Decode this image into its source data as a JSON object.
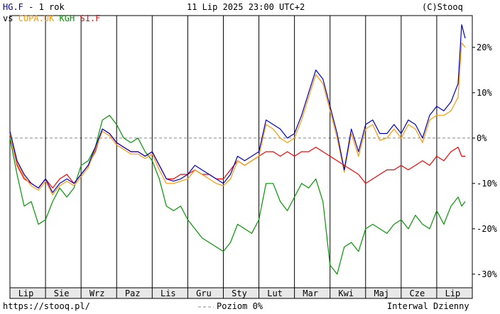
{
  "header": {
    "symbol": "HG.F",
    "range_text": " - 1 rok",
    "date": "11 Lip 2025 23:00 UTC+2",
    "copyright": "(C)Stooq",
    "vs_label": "vs",
    "compare": [
      {
        "label": "COPA.UK",
        "color": "#ff9900"
      },
      {
        "label": "KGH",
        "color": "#009900"
      },
      {
        "label": "S1.F",
        "color": "#ff0000"
      }
    ]
  },
  "footer": {
    "url": "https://stooq.pl/",
    "legend": "Poziom 0%",
    "interval": "Interwal Dzienny"
  },
  "chart_data": {
    "type": "line",
    "ylim": [
      -33,
      27
    ],
    "yticks": [
      -30,
      -20,
      -10,
      0,
      10,
      20
    ],
    "ytick_labels": [
      "-30%",
      "-20%",
      "-10%",
      "0%",
      "10%",
      "20%"
    ],
    "xlim": [
      0,
      13
    ],
    "xticks": [
      {
        "pos": 0.6,
        "label": "Lip"
      },
      {
        "pos": 1.6,
        "label": "Sie"
      },
      {
        "pos": 2.6,
        "label": "Wrz"
      },
      {
        "pos": 3.6,
        "label": "Paz"
      },
      {
        "pos": 4.6,
        "label": "Lis"
      },
      {
        "pos": 5.6,
        "label": "Gru"
      },
      {
        "pos": 6.6,
        "label": "Sty"
      },
      {
        "pos": 7.6,
        "label": "Lut"
      },
      {
        "pos": 8.6,
        "label": "Mar"
      },
      {
        "pos": 9.6,
        "label": "Kwi"
      },
      {
        "pos": 10.6,
        "label": "Maj"
      },
      {
        "pos": 11.6,
        "label": "Cze"
      },
      {
        "pos": 12.6,
        "label": "Lip"
      }
    ],
    "series": [
      {
        "name": "HG.F",
        "color": "#0000cc",
        "x": [
          0,
          0.2,
          0.4,
          0.6,
          0.8,
          1.0,
          1.2,
          1.4,
          1.6,
          1.8,
          2.0,
          2.2,
          2.4,
          2.6,
          2.8,
          3.0,
          3.2,
          3.4,
          3.6,
          3.8,
          4.0,
          4.2,
          4.4,
          4.6,
          4.8,
          5.0,
          5.2,
          5.4,
          5.6,
          5.8,
          6.0,
          6.2,
          6.4,
          6.6,
          6.8,
          7.0,
          7.2,
          7.4,
          7.6,
          7.8,
          8.0,
          8.2,
          8.4,
          8.6,
          8.8,
          9.0,
          9.2,
          9.4,
          9.6,
          9.8,
          10.0,
          10.2,
          10.4,
          10.6,
          10.8,
          11.0,
          11.2,
          11.4,
          11.6,
          11.8,
          12.0,
          12.2,
          12.4,
          12.6,
          12.7,
          12.8
        ],
        "y": [
          1.5,
          -5,
          -8,
          -10,
          -11,
          -9,
          -12,
          -10,
          -9,
          -10,
          -8,
          -6,
          -2,
          2,
          1,
          -1,
          -2,
          -3,
          -3,
          -4,
          -3,
          -6,
          -9,
          -9.5,
          -9,
          -8,
          -6,
          -7,
          -8,
          -9,
          -10,
          -8,
          -4,
          -5,
          -4,
          -3,
          4,
          3,
          2,
          0,
          1,
          5,
          10,
          15,
          13,
          7,
          1,
          -7,
          2,
          -3,
          3,
          4,
          1,
          1,
          3,
          1,
          4,
          3,
          0,
          5,
          7,
          6,
          8,
          12,
          25,
          22
        ]
      },
      {
        "name": "COPA.UK",
        "color": "#ff9900",
        "x": [
          0,
          0.2,
          0.4,
          0.6,
          0.8,
          1.0,
          1.2,
          1.4,
          1.6,
          1.8,
          2.0,
          2.2,
          2.4,
          2.6,
          2.8,
          3.0,
          3.2,
          3.4,
          3.6,
          3.8,
          4.0,
          4.2,
          4.4,
          4.6,
          4.8,
          5.0,
          5.2,
          5.4,
          5.6,
          5.8,
          6.0,
          6.2,
          6.4,
          6.6,
          6.8,
          7.0,
          7.2,
          7.4,
          7.6,
          7.8,
          8.0,
          8.2,
          8.4,
          8.6,
          8.8,
          9.0,
          9.2,
          9.4,
          9.6,
          9.8,
          10.0,
          10.2,
          10.4,
          10.6,
          10.8,
          11.0,
          11.2,
          11.4,
          11.6,
          11.8,
          12.0,
          12.2,
          12.4,
          12.6,
          12.7,
          12.8
        ],
        "y": [
          1,
          -5.5,
          -8.5,
          -10.5,
          -11.5,
          -9.5,
          -12.5,
          -10.5,
          -9.5,
          -10.5,
          -8.5,
          -6.5,
          -2.5,
          1.5,
          0.5,
          -1.5,
          -2.5,
          -3.5,
          -3.5,
          -4.5,
          -3.5,
          -7,
          -10,
          -10,
          -9.5,
          -9,
          -7,
          -8,
          -9,
          -10,
          -10.5,
          -9,
          -5,
          -6,
          -5,
          -4,
          3,
          2,
          0,
          -1,
          0,
          4,
          9,
          14,
          12,
          6,
          0,
          -7.5,
          1,
          -4,
          2,
          3,
          -0.5,
          0,
          2,
          0,
          3,
          2,
          -1,
          4,
          5,
          5,
          6,
          9,
          21,
          20
        ]
      },
      {
        "name": "KGH",
        "color": "#009900",
        "x": [
          0,
          0.2,
          0.4,
          0.6,
          0.8,
          1.0,
          1.2,
          1.4,
          1.6,
          1.8,
          2.0,
          2.2,
          2.4,
          2.6,
          2.8,
          3.0,
          3.2,
          3.4,
          3.6,
          3.8,
          4.0,
          4.2,
          4.4,
          4.6,
          4.8,
          5.0,
          5.2,
          5.4,
          5.6,
          5.8,
          6.0,
          6.2,
          6.4,
          6.6,
          6.8,
          7.0,
          7.2,
          7.4,
          7.6,
          7.8,
          8.0,
          8.2,
          8.4,
          8.6,
          8.8,
          9.0,
          9.2,
          9.4,
          9.6,
          9.8,
          10.0,
          10.2,
          10.4,
          10.6,
          10.8,
          11.0,
          11.2,
          11.4,
          11.6,
          11.8,
          12.0,
          12.2,
          12.4,
          12.6,
          12.7,
          12.8
        ],
        "y": [
          0,
          -8,
          -15,
          -14,
          -19,
          -18,
          -14,
          -11,
          -13,
          -11,
          -6,
          -5,
          -2,
          4,
          5,
          3,
          0,
          -1,
          0,
          -3,
          -5,
          -9,
          -15,
          -16,
          -15,
          -18,
          -20,
          -22,
          -23,
          -24,
          -25,
          -23,
          -19,
          -20,
          -21,
          -18,
          -10,
          -10,
          -14,
          -16,
          -13,
          -10,
          -11,
          -9,
          -14,
          -28,
          -30,
          -24,
          -23,
          -25,
          -20,
          -19,
          -20,
          -21,
          -19,
          -18,
          -20,
          -17,
          -19,
          -20,
          -16,
          -19,
          -15,
          -13,
          -15,
          -14
        ]
      },
      {
        "name": "S1.F",
        "color": "#ff0000",
        "x": [
          0,
          0.2,
          0.4,
          0.6,
          0.8,
          1.0,
          1.2,
          1.4,
          1.6,
          1.8,
          2.0,
          2.2,
          2.4,
          2.6,
          2.8,
          3.0,
          3.2,
          3.4,
          3.6,
          3.8,
          4.0,
          4.2,
          4.4,
          4.6,
          4.8,
          5.0,
          5.2,
          5.4,
          5.6,
          5.8,
          6.0,
          6.2,
          6.4,
          6.6,
          6.8,
          7.0,
          7.2,
          7.4,
          7.6,
          7.8,
          8.0,
          8.2,
          8.4,
          8.6,
          8.8,
          9.0,
          9.2,
          9.4,
          9.6,
          9.8,
          10.0,
          10.2,
          10.4,
          10.6,
          10.8,
          11.0,
          11.2,
          11.4,
          11.6,
          11.8,
          12.0,
          12.2,
          12.4,
          12.6,
          12.7,
          12.8
        ],
        "y": [
          1,
          -6,
          -9,
          -10,
          -11,
          -9,
          -11,
          -9,
          -8,
          -10,
          -8,
          -6,
          -3,
          2,
          1,
          -1,
          -2,
          -3,
          -3,
          -4,
          -3,
          -6,
          -9,
          -9,
          -8,
          -8,
          -7,
          -8,
          -8,
          -9,
          -9,
          -7,
          -5,
          -6,
          -5,
          -4,
          -3,
          -3,
          -4,
          -3,
          -4,
          -3,
          -3,
          -2,
          -3,
          -4,
          -5,
          -6,
          -7,
          -8,
          -10,
          -9,
          -8,
          -7,
          -7,
          -6,
          -7,
          -6,
          -5,
          -6,
          -4,
          -5,
          -3,
          -2,
          -4,
          -4
        ]
      }
    ]
  }
}
